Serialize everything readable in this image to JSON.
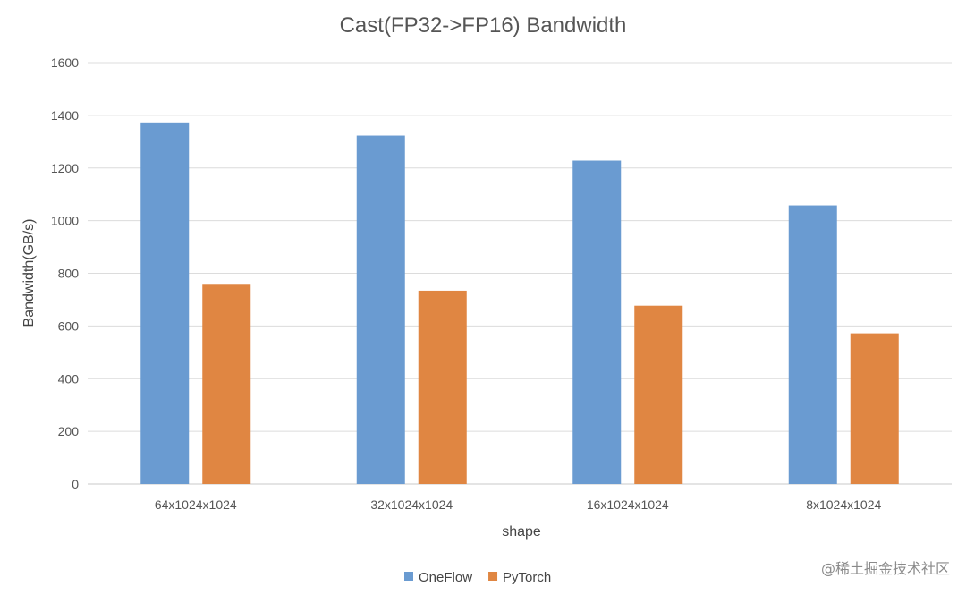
{
  "chart_data": {
    "type": "bar",
    "title": "Cast(FP32->FP16) Bandwidth",
    "xlabel": "shape",
    "ylabel": "Bandwidth(GB/s)",
    "categories": [
      "64x1024x1024",
      "32x1024x1024",
      "16x1024x1024",
      "8x1024x1024"
    ],
    "series": [
      {
        "name": "OneFlow",
        "color": "#6a9bd1",
        "values": [
          1373,
          1323,
          1228,
          1058
        ]
      },
      {
        "name": "PyTorch",
        "color": "#e08642",
        "values": [
          760,
          734,
          677,
          572
        ]
      }
    ],
    "ylim": [
      0,
      1600
    ],
    "yticks": [
      0,
      200,
      400,
      600,
      800,
      1000,
      1200,
      1400,
      1600
    ],
    "grid": true,
    "legend_position": "bottom"
  },
  "watermark": "@稀土掘金技术社区"
}
